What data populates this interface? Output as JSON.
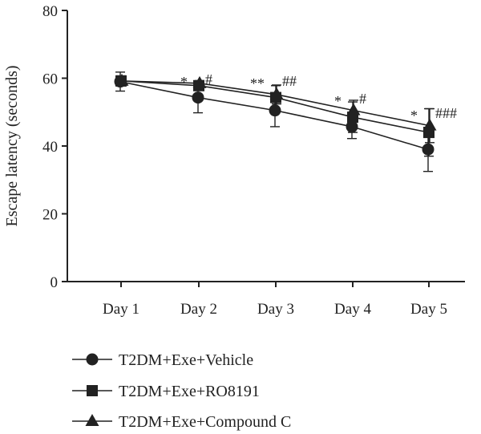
{
  "chart_data": {
    "type": "line",
    "title": "",
    "xlabel": "",
    "ylabel": "Escape latency (seconds)",
    "ylim": [
      0,
      80
    ],
    "yticks": [
      0,
      20,
      40,
      60,
      80
    ],
    "categories": [
      "Day 1",
      "Day 2",
      "Day 3",
      "Day 4",
      "Day 5"
    ],
    "grid": false,
    "legend_position": "bottom",
    "series": [
      {
        "name": "T2DM+Exe+Vehicle",
        "marker": "circle",
        "values": [
          59,
          54.3,
          50.5,
          45.7,
          39
        ],
        "errors": [
          2.8,
          4.5,
          4.8,
          3.5,
          6.5
        ]
      },
      {
        "name": "T2DM+Exe+RO8191",
        "marker": "square",
        "values": [
          59.2,
          57.8,
          54.3,
          48.5,
          44
        ],
        "errors": [
          1.5,
          1.2,
          3.5,
          4.5,
          7.0
        ]
      },
      {
        "name": "T2DM+Exe+Compound C",
        "marker": "triangle",
        "values": [
          59.2,
          58.5,
          55.2,
          50.5,
          46
        ],
        "errors": [
          1.3,
          0.8,
          2.8,
          3.0,
          5.0
        ]
      }
    ],
    "annotations": [
      {
        "category": "Day 2",
        "left": "*",
        "right": "#"
      },
      {
        "category": "Day 3",
        "left": "**",
        "right": "##"
      },
      {
        "category": "Day 4",
        "left": "*",
        "right": "#"
      },
      {
        "category": "Day 5",
        "left": "*",
        "right": "###"
      }
    ]
  }
}
